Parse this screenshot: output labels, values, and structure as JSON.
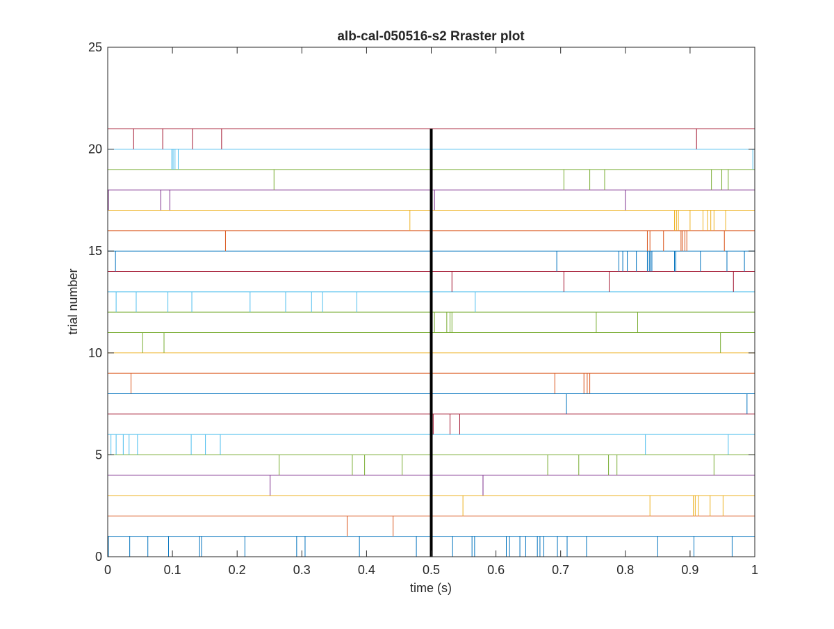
{
  "chart_data": {
    "type": "raster",
    "title": "alb-cal-050516-s2 Rraster plot",
    "xlabel": "time (s)",
    "ylabel": "trial number",
    "xlim": [
      0,
      1
    ],
    "ylim": [
      0,
      25
    ],
    "xticks": [
      "0",
      "0.1",
      "0.2",
      "0.3",
      "0.4",
      "0.5",
      "0.6",
      "0.7",
      "0.8",
      "0.9",
      "1"
    ],
    "xtick_values": [
      0,
      0.1,
      0.2,
      0.3,
      0.4,
      0.5,
      0.6,
      0.7,
      0.8,
      0.9,
      1
    ],
    "yticks": [
      "0",
      "5",
      "10",
      "15",
      "20",
      "25"
    ],
    "ytick_values": [
      0,
      5,
      10,
      15,
      20,
      25
    ],
    "grid": false,
    "event_marker": {
      "x": 0.5,
      "y_range": [
        0,
        21
      ],
      "color": "#000000"
    },
    "trials": [
      {
        "trial": 1,
        "color": "#0072BD",
        "spikes": [
          0.001,
          0.034,
          0.062,
          0.094,
          0.142,
          0.145,
          0.212,
          0.292,
          0.305,
          0.389,
          0.477,
          0.533,
          0.563,
          0.567,
          0.616,
          0.621,
          0.637,
          0.646,
          0.664,
          0.668,
          0.674,
          0.695,
          0.71,
          0.74,
          0.85,
          0.906,
          0.965
        ]
      },
      {
        "trial": 2,
        "color": "#D95319",
        "spikes": [
          0.37,
          0.441
        ]
      },
      {
        "trial": 3,
        "color": "#EDB120",
        "spikes": [
          0.549,
          0.838,
          0.905,
          0.908,
          0.913,
          0.931,
          0.951
        ]
      },
      {
        "trial": 4,
        "color": "#7E2F8E",
        "spikes": [
          0.251,
          0.58
        ]
      },
      {
        "trial": 5,
        "color": "#77AC30",
        "spikes": [
          0.265,
          0.378,
          0.397,
          0.455,
          0.68,
          0.728,
          0.774,
          0.787,
          0.937
        ]
      },
      {
        "trial": 6,
        "color": "#4DBEEE",
        "spikes": [
          0.005,
          0.013,
          0.024,
          0.033,
          0.046,
          0.129,
          0.151,
          0.174,
          0.831,
          0.959
        ]
      },
      {
        "trial": 7,
        "color": "#A2142F",
        "spikes": [
          0.503,
          0.529,
          0.544
        ]
      },
      {
        "trial": 8,
        "color": "#0072BD",
        "spikes": [
          0.709,
          0.988
        ]
      },
      {
        "trial": 9,
        "color": "#D95319",
        "spikes": [
          0.036,
          0.691,
          0.736,
          0.741,
          0.745
        ]
      },
      {
        "trial": 10,
        "color": "#EDB120",
        "spikes": []
      },
      {
        "trial": 11,
        "color": "#77AC30",
        "spikes": [
          0.054,
          0.087,
          0.947
        ]
      },
      {
        "trial": 12,
        "color": "#77AC30",
        "spikes": [
          0.505,
          0.524,
          0.529,
          0.532,
          0.755,
          0.819
        ]
      },
      {
        "trial": 13,
        "color": "#4DBEEE",
        "spikes": [
          0.013,
          0.044,
          0.093,
          0.13,
          0.22,
          0.275,
          0.315,
          0.332,
          0.385,
          0.568
        ]
      },
      {
        "trial": 14,
        "color": "#A2142F",
        "spikes": [
          0.532,
          0.705,
          0.775,
          0.967
        ]
      },
      {
        "trial": 15,
        "color": "#0072BD",
        "spikes": [
          0.012,
          0.694,
          0.79,
          0.796,
          0.803,
          0.817,
          0.834,
          0.837,
          0.839,
          0.841,
          0.876,
          0.878,
          0.916,
          0.957,
          0.984
        ]
      },
      {
        "trial": 16,
        "color": "#D95319",
        "spikes": [
          0.182,
          0.834,
          0.838,
          0.859,
          0.886,
          0.888,
          0.892,
          0.895,
          0.953
        ]
      },
      {
        "trial": 17,
        "color": "#EDB120",
        "spikes": [
          0.467,
          0.876,
          0.879,
          0.882,
          0.9,
          0.92,
          0.927,
          0.932,
          0.937,
          0.955
        ]
      },
      {
        "trial": 18,
        "color": "#7E2F8E",
        "spikes": [
          0.001,
          0.082,
          0.096,
          0.505,
          0.8
        ]
      },
      {
        "trial": 19,
        "color": "#77AC30",
        "spikes": [
          0.257,
          0.705,
          0.745,
          0.768,
          0.933,
          0.949,
          0.959
        ]
      },
      {
        "trial": 20,
        "color": "#4DBEEE",
        "spikes": [
          0.099,
          0.101,
          0.104,
          0.109,
          0.997
        ]
      },
      {
        "trial": 21,
        "color": "#A2142F",
        "spikes": [
          0.04,
          0.085,
          0.131,
          0.176,
          0.91
        ]
      }
    ]
  }
}
